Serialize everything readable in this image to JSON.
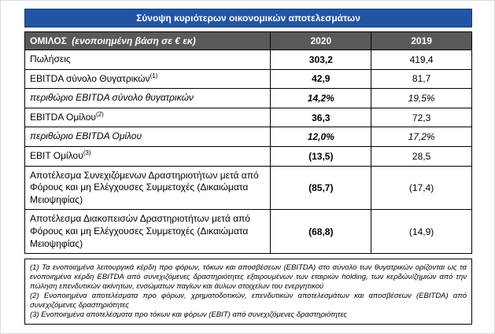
{
  "title": "Σύνοψη κυριότερων οικονομικών αποτελεσμάτων",
  "colors": {
    "title_bg": "#2155A3",
    "header_bg": "#595959",
    "border": "#000000"
  },
  "table": {
    "header": {
      "group": "ΟΜΙΛΟΣ",
      "basis": "(ενοποιημένη βάση σε € εκ)",
      "col2020": "2020",
      "col2019": "2019"
    },
    "rows": [
      {
        "label": "Πωλήσεις",
        "sup": "",
        "v2020": "303,2",
        "v2019": "419,4",
        "italic": false
      },
      {
        "label": "EBITDA σύνολο Θυγατρικών",
        "sup": "(1)",
        "v2020": "42,9",
        "v2019": "81,7",
        "italic": false
      },
      {
        "label": "περιθώριο EBITDA σύνολο θυγατρικών",
        "sup": "",
        "v2020": "14,2%",
        "v2019": "19,5%",
        "italic": true
      },
      {
        "label": "EBITDA Ομίλου",
        "sup": "(2)",
        "v2020": "36,3",
        "v2019": "72,3",
        "italic": false
      },
      {
        "label": "περιθώριο EBITDA Ομίλου",
        "sup": "",
        "v2020": "12,0%",
        "v2019": "17,2%",
        "italic": true
      },
      {
        "label": "EBIT Ομίλου",
        "sup": "(3)",
        "v2020": "(13,5)",
        "v2019": "28,5",
        "italic": false
      },
      {
        "label": "Αποτέλεσμα Συνεχιζόμενων Δραστηριοτήτων μετά από Φόρους και μη Ελέγχουσες Συμμετοχές (Δικαιώματα Μειοψηφίας)",
        "sup": "",
        "v2020": "(85,7)",
        "v2019": "(17,4)",
        "italic": false
      },
      {
        "label": "Αποτέλεσμα Διακοπεισών Δραστηριοτήτων μετά από Φόρους και μη Ελέγχουσες Συμμετοχές (Δικαιώματα Μειοψηφίας)",
        "sup": "",
        "v2020": "(68,8)",
        "v2019": "(14,9)",
        "italic": false
      }
    ]
  },
  "footnotes": [
    "(1) Τα ενοποιημένα λειτουργικά κέρδη προ φόρων, τόκων και αποσβέσεων (EBITDA) στο σύνολο των θυγατρικών ορίζονται ως τα ενοποιημένα κέρδη EBITDA από συνεχιζόμενες δραστηριότητες εξαιρουμένων των εταιριών holding, των κερδών/ζημιών από την πώληση επενδυτικών ακίνητων, ενσώματων παγίων και άυλων στοιχείων του ενεργητικού",
    "(2) Ενοποιημένα αποτελέσματα προ φόρων, χρηματοδοτικών, επενδυτικών αποτελεσμάτων και αποσβέσεων (EBITDA) από συνεχιζόμενες δραστηριότητες",
    "(3) Ενοποιημένα αποτελέσματα προ τόκων και φόρων (EBIT) από συνεχιζόμενες δραστηριότητες"
  ]
}
